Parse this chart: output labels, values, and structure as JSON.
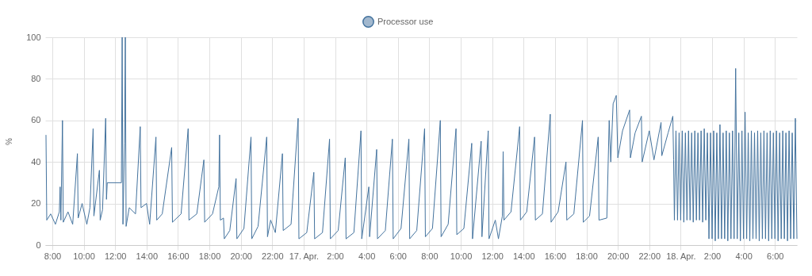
{
  "chart_data": {
    "type": "line",
    "ylabel": "%",
    "legend": "top",
    "grid": true,
    "xlim": [
      "--04-16T07:33",
      "--04-18T07:24"
    ],
    "ylim": [
      0,
      100
    ],
    "yticks": [
      0,
      20,
      40,
      60,
      80,
      100
    ],
    "xticks": [
      {
        "value": "--04-16T08:00",
        "label": "8:00"
      },
      {
        "value": "--04-16T10:00",
        "label": "10:00"
      },
      {
        "value": "--04-16T12:00",
        "label": "12:00"
      },
      {
        "value": "--04-16T14:00",
        "label": "14:00"
      },
      {
        "value": "--04-16T16:00",
        "label": "16:00"
      },
      {
        "value": "--04-16T18:00",
        "label": "18:00"
      },
      {
        "value": "--04-16T20:00",
        "label": "20:00"
      },
      {
        "value": "--04-16T22:00",
        "label": "22:00"
      },
      {
        "value": "--04-17T00:00",
        "label": "17. Apr."
      },
      {
        "value": "--04-17T02:00",
        "label": "2:00"
      },
      {
        "value": "--04-17T04:00",
        "label": "4:00"
      },
      {
        "value": "--04-17T06:00",
        "label": "6:00"
      },
      {
        "value": "--04-17T08:00",
        "label": "8:00"
      },
      {
        "value": "--04-17T10:00",
        "label": "10:00"
      },
      {
        "value": "--04-17T12:00",
        "label": "12:00"
      },
      {
        "value": "--04-17T14:00",
        "label": "14:00"
      },
      {
        "value": "--04-17T16:00",
        "label": "16:00"
      },
      {
        "value": "--04-17T18:00",
        "label": "18:00"
      },
      {
        "value": "--04-17T20:00",
        "label": "20:00"
      },
      {
        "value": "--04-17T22:00",
        "label": "22:00"
      },
      {
        "value": "--04-18T00:00",
        "label": "18. Apr."
      },
      {
        "value": "--04-18T02:00",
        "label": "2:00"
      },
      {
        "value": "--04-18T04:00",
        "label": "4:00"
      },
      {
        "value": "--04-18T06:00",
        "label": "6:00"
      }
    ],
    "series": [
      {
        "name": "Processor use",
        "color": "#44739e",
        "x": [
          "--04-16T07:36",
          "--04-16T07:39",
          "--04-16T07:54",
          "--04-16T08:12",
          "--04-16T08:27",
          "--04-16T08:30",
          "--04-16T08:33",
          "--04-16T08:39",
          "--04-16T08:42",
          "--04-16T09:00",
          "--04-16T09:18",
          "--04-16T09:36",
          "--04-16T09:39",
          "--04-16T09:54",
          "--04-16T10:12",
          "--04-16T10:24",
          "--04-16T10:36",
          "--04-16T10:39",
          "--04-16T11:00",
          "--04-16T11:03",
          "--04-16T11:12",
          "--04-16T11:24",
          "--04-16T11:27",
          "--04-16T11:30",
          "--04-16T12:24",
          "--04-16T12:27",
          "--04-16T12:30",
          "--04-16T12:36",
          "--04-16T12:39",
          "--04-16T12:42",
          "--04-16T12:54",
          "--04-16T13:18",
          "--04-16T13:36",
          "--04-16T13:39",
          "--04-16T14:00",
          "--04-16T14:12",
          "--04-16T14:36",
          "--04-16T14:39",
          "--04-16T15:00",
          "--04-16T15:36",
          "--04-16T15:39",
          "--04-16T16:12",
          "--04-16T16:39",
          "--04-16T16:42",
          "--04-16T17:12",
          "--04-16T17:39",
          "--04-16T17:42",
          "--04-16T18:12",
          "--04-16T18:36",
          "--04-16T18:39",
          "--04-16T18:42",
          "--04-16T18:54",
          "--04-16T18:57",
          "--04-16T19:18",
          "--04-16T19:42",
          "--04-16T19:45",
          "--04-16T20:12",
          "--04-16T20:39",
          "--04-16T20:42",
          "--04-16T21:06",
          "--04-16T21:39",
          "--04-16T21:42",
          "--04-16T21:54",
          "--04-16T22:12",
          "--04-16T22:39",
          "--04-16T22:42",
          "--04-16T23:12",
          "--04-16T23:39",
          "--04-16T23:42",
          "--04-17T00:12",
          "--04-17T00:39",
          "--04-17T00:42",
          "--04-17T01:12",
          "--04-17T01:39",
          "--04-17T01:42",
          "--04-17T02:12",
          "--04-17T02:39",
          "--04-17T02:42",
          "--04-17T03:12",
          "--04-17T03:39",
          "--04-17T03:42",
          "--04-17T04:09",
          "--04-17T04:12",
          "--04-17T04:39",
          "--04-17T04:42",
          "--04-17T05:12",
          "--04-17T05:39",
          "--04-17T05:42",
          "--04-17T06:12",
          "--04-17T06:42",
          "--04-17T06:45",
          "--04-17T07:12",
          "--04-17T07:42",
          "--04-17T07:45",
          "--04-17T08:12",
          "--04-17T08:42",
          "--04-17T08:45",
          "--04-17T09:12",
          "--04-17T09:42",
          "--04-17T09:45",
          "--04-17T10:12",
          "--04-17T10:42",
          "--04-17T10:45",
          "--04-17T11:18",
          "--04-17T11:21",
          "--04-17T11:45",
          "--04-17T11:48",
          "--04-17T12:12",
          "--04-17T12:24",
          "--04-17T12:39",
          "--04-17T12:42",
          "--04-17T12:45",
          "--04-17T13:12",
          "--04-17T13:45",
          "--04-17T13:48",
          "--04-17T14:12",
          "--04-17T14:42",
          "--04-17T14:45",
          "--04-17T15:12",
          "--04-17T15:42",
          "--04-17T15:45",
          "--04-17T16:12",
          "--04-17T16:42",
          "--04-17T16:45",
          "--04-17T17:12",
          "--04-17T17:45",
          "--04-17T17:48",
          "--04-17T18:12",
          "--04-17T18:45",
          "--04-17T18:48",
          "--04-17T19:18",
          "--04-17T19:27",
          "--04-17T19:33",
          "--04-17T19:42",
          "--04-17T19:54",
          "--04-17T20:00",
          "--04-17T20:18",
          "--04-17T20:45",
          "--04-17T20:48",
          "--04-17T21:06",
          "--04-17T21:30",
          "--04-17T21:33",
          "--04-17T22:00",
          "--04-17T22:18",
          "--04-17T22:45",
          "--04-17T22:48",
          "--04-17T23:12",
          "--04-17T23:30",
          "--04-17T23:33",
          "--04-17T23:36",
          "--04-17T23:42",
          "--04-17T23:48",
          "--04-17T23:54",
          "--04-18T00:00",
          "--04-18T00:06",
          "--04-18T00:12",
          "--04-18T00:18",
          "--04-18T00:24",
          "--04-18T00:30",
          "--04-18T00:36",
          "--04-18T00:42",
          "--04-18T00:48",
          "--04-18T00:54",
          "--04-18T01:00",
          "--04-18T01:06",
          "--04-18T01:12",
          "--04-18T01:18",
          "--04-18T01:24",
          "--04-18T01:30",
          "--04-18T01:36",
          "--04-18T01:42",
          "--04-18T01:48",
          "--04-18T01:54",
          "--04-18T02:00",
          "--04-18T02:06",
          "--04-18T02:12",
          "--04-18T02:18",
          "--04-18T02:24",
          "--04-18T02:30",
          "--04-18T02:36",
          "--04-18T02:42",
          "--04-18T02:48",
          "--04-18T02:54",
          "--04-18T03:00",
          "--04-18T03:06",
          "--04-18T03:12",
          "--04-18T03:18",
          "--04-18T03:24",
          "--04-18T03:30",
          "--04-18T03:36",
          "--04-18T03:42",
          "--04-18T03:48",
          "--04-18T03:54",
          "--04-18T04:00",
          "--04-18T04:06",
          "--04-18T04:12",
          "--04-18T04:18",
          "--04-18T04:24",
          "--04-18T04:30",
          "--04-18T04:36",
          "--04-18T04:42",
          "--04-18T04:48",
          "--04-18T04:54",
          "--04-18T05:00",
          "--04-18T05:06",
          "--04-18T05:12",
          "--04-18T05:18",
          "--04-18T05:24",
          "--04-18T05:30",
          "--04-18T05:36",
          "--04-18T05:42",
          "--04-18T05:48",
          "--04-18T05:54",
          "--04-18T06:00",
          "--04-18T06:06",
          "--04-18T06:12",
          "--04-18T06:18",
          "--04-18T06:24",
          "--04-18T06:30",
          "--04-18T06:36",
          "--04-18T06:42",
          "--04-18T06:48",
          "--04-18T06:54",
          "--04-18T07:00",
          "--04-18T07:06",
          "--04-18T07:12",
          "--04-18T07:18",
          "--04-18T07:24"
        ],
        "values": [
          53,
          12,
          15,
          10,
          16,
          28,
          12,
          60,
          11,
          16,
          10,
          44,
          13,
          20,
          10,
          18,
          56,
          14,
          36,
          12,
          17,
          61,
          22,
          30,
          30,
          100,
          10,
          49,
          100,
          9,
          18,
          15,
          57,
          18,
          20,
          10,
          52,
          12,
          15,
          47,
          11,
          15,
          56,
          12,
          15,
          41,
          11,
          15,
          28,
          53,
          12,
          13,
          3,
          7,
          32,
          3,
          8,
          52,
          3,
          9,
          52,
          4,
          12,
          6,
          44,
          7,
          10,
          61,
          3,
          6,
          35,
          3,
          6,
          51,
          3,
          7,
          42,
          3,
          6,
          55,
          3,
          28,
          4,
          46,
          3,
          7,
          51,
          3,
          8,
          51,
          3,
          7,
          56,
          4,
          8,
          60,
          4,
          10,
          56,
          5,
          8,
          49,
          3,
          50,
          4,
          55,
          3,
          12,
          3,
          14,
          45,
          12,
          16,
          57,
          12,
          16,
          52,
          12,
          15,
          63,
          11,
          16,
          40,
          12,
          15,
          60,
          11,
          14,
          52,
          12,
          13,
          60,
          40,
          68,
          72,
          42,
          55,
          65,
          42,
          54,
          62,
          40,
          55,
          41,
          59,
          43,
          54,
          62,
          41,
          12,
          55,
          12,
          54,
          12,
          55,
          11,
          54,
          12,
          55,
          12,
          54,
          11,
          55,
          12,
          54,
          12,
          55,
          11,
          56,
          12,
          54,
          3,
          54,
          3,
          55,
          2,
          54,
          3,
          58,
          3,
          54,
          3,
          55,
          2,
          54,
          3,
          55,
          3,
          85,
          3,
          54,
          2,
          55,
          3,
          64,
          3,
          54,
          2,
          55,
          3,
          54,
          3,
          55,
          2,
          54,
          3,
          55,
          3,
          54,
          2,
          55,
          3,
          54,
          3,
          55,
          2,
          54,
          3,
          55,
          3,
          54,
          2,
          55,
          3,
          54,
          3,
          61,
          3
        ]
      }
    ]
  }
}
